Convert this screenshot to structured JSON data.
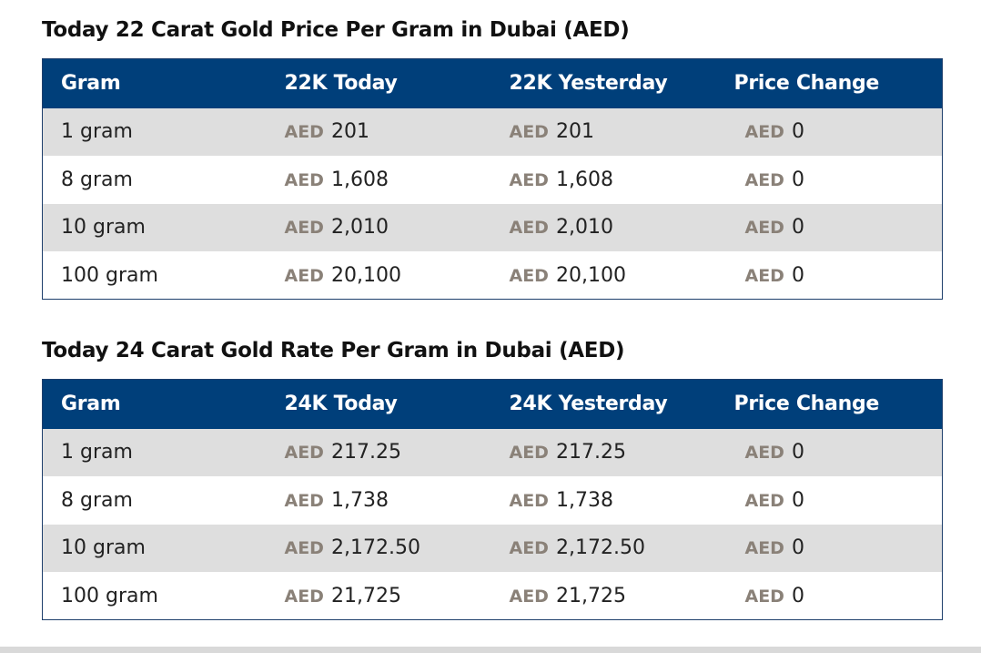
{
  "sections": [
    {
      "title": "Today 22 Carat Gold Price Per Gram in Dubai (AED)",
      "headers": [
        "Gram",
        "22K Today",
        "22K Yesterday",
        "Price Change"
      ],
      "currency": "AED",
      "rows": [
        {
          "gram": "1 gram",
          "today": "201",
          "yesterday": "201",
          "change": "0"
        },
        {
          "gram": "8 gram",
          "today": "1,608",
          "yesterday": "1,608",
          "change": "0"
        },
        {
          "gram": "10 gram",
          "today": "2,010",
          "yesterday": "2,010",
          "change": "0"
        },
        {
          "gram": "100 gram",
          "today": "20,100",
          "yesterday": "20,100",
          "change": "0"
        }
      ]
    },
    {
      "title": "Today 24 Carat Gold Rate Per Gram in Dubai (AED)",
      "headers": [
        "Gram",
        "24K Today",
        "24K Yesterday",
        "Price Change"
      ],
      "currency": "AED",
      "rows": [
        {
          "gram": "1 gram",
          "today": "217.25",
          "yesterday": "217.25",
          "change": "0"
        },
        {
          "gram": "8 gram",
          "today": "1,738",
          "yesterday": "1,738",
          "change": "0"
        },
        {
          "gram": "10 gram",
          "today": "2,172.50",
          "yesterday": "2,172.50",
          "change": "0"
        },
        {
          "gram": "100 gram",
          "today": "21,725",
          "yesterday": "21,725",
          "change": "0"
        }
      ]
    }
  ],
  "colors": {
    "header_bg": "#003f7a",
    "row_alt_bg": "#dedede",
    "currency_text": "#8a8178"
  }
}
